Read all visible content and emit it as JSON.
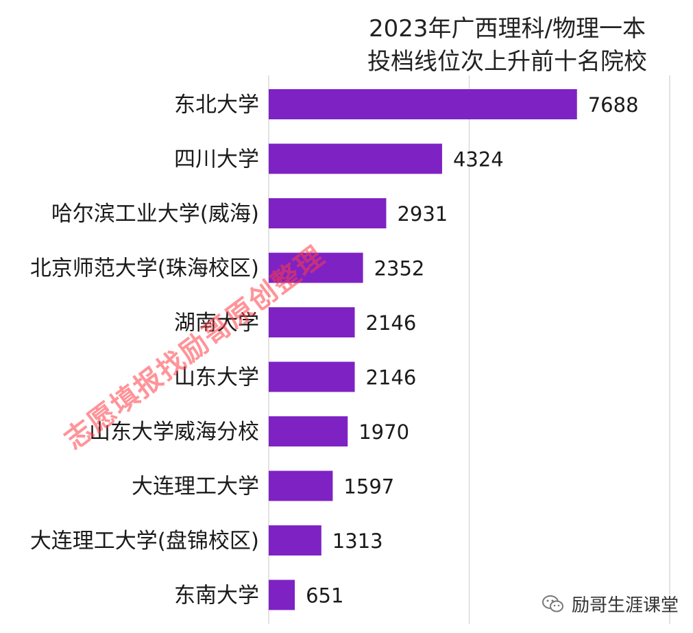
{
  "chart_data": {
    "type": "bar",
    "orientation": "horizontal",
    "title": [
      "2023年广西理科/物理一本",
      "投档线位次上升前十名院校"
    ],
    "categories": [
      "东北大学",
      "四川大学",
      "哈尔滨工业大学(威海)",
      "北京师范大学(珠海校区)",
      "湖南大学",
      "山东大学",
      "山东大学威海分校",
      "大连理工大学",
      "大连理工大学(盘锦校区)",
      "东南大学"
    ],
    "values": [
      7688,
      4324,
      2931,
      2352,
      2146,
      2146,
      1970,
      1597,
      1313,
      651
    ],
    "xlim": [
      0,
      10000
    ],
    "grid": true,
    "bar_color": "#7e22c4"
  },
  "watermark": "志愿填报找励哥原创整理",
  "brand": "励哥生涯课堂"
}
